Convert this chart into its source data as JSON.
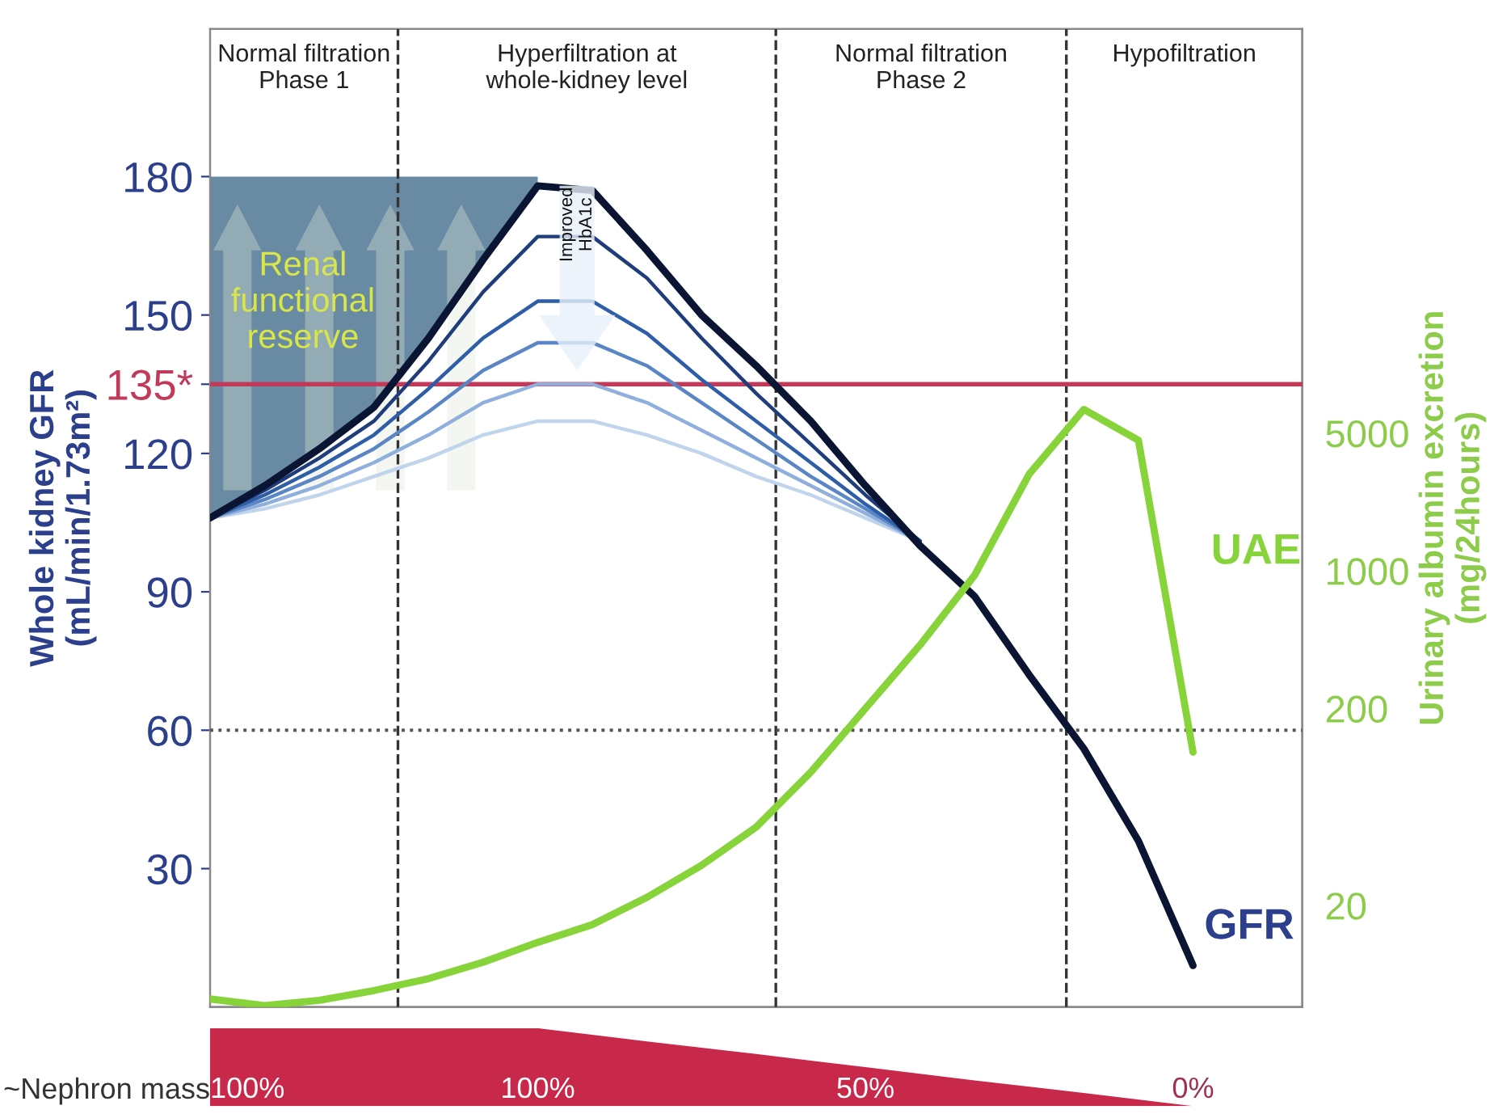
{
  "chart_data": [
    {
      "type": "line",
      "ylabel": "Whole kidney GFR\n(mL/min/1.73m²)",
      "y2label": "Urinary albumin excretion\n(mg/24hours)",
      "categories": [
        null,
        null,
        null,
        null,
        null,
        null,
        null,
        null,
        null,
        null,
        null,
        null,
        null,
        null,
        null,
        null,
        null,
        null,
        null,
        null,
        null
      ],
      "ylim": [
        0,
        212
      ],
      "yticks": [
        30,
        60,
        90,
        120,
        {
          "value": 135,
          "label": "135*"
        },
        150,
        180
      ],
      "y2lim": [
        6.1,
        564000
      ],
      "y2ticks": [
        20,
        200,
        1000,
        5000
      ],
      "log": "y2",
      "tick_labels": "y",
      "series": [
        {
          "type": "area",
          "color": "#4f7593",
          "values": [
            180,
            180,
            180,
            180,
            180,
            180,
            180,
            null,
            null,
            null,
            null,
            null,
            null,
            null,
            null,
            null,
            null,
            null,
            null,
            null,
            null
          ]
        },
        {
          "color": "#c0d4ec",
          "values": [
            106,
            108,
            111,
            115,
            119,
            124,
            127,
            127,
            124,
            120,
            115,
            111,
            106,
            101,
            null,
            null,
            null,
            null,
            null,
            null,
            null
          ]
        },
        {
          "color": "#8fb0dc",
          "values": [
            106,
            109,
            113,
            118,
            124,
            131,
            135,
            135,
            131,
            125,
            119,
            113,
            107,
            101,
            null,
            null,
            null,
            null,
            null,
            null,
            null
          ]
        },
        {
          "color": "#5b86c5",
          "values": [
            106,
            110,
            115,
            121,
            129,
            138,
            144,
            144,
            139,
            131,
            123,
            115,
            108,
            101,
            null,
            null,
            null,
            null,
            null,
            null,
            null
          ]
        },
        {
          "color": "#2e5ea8",
          "values": [
            106,
            111,
            117,
            124,
            134,
            145,
            153,
            153,
            146,
            136,
            127,
            118,
            109,
            101,
            null,
            null,
            null,
            null,
            null,
            null,
            null
          ]
        },
        {
          "color": "#1f3d7a",
          "values": [
            106,
            112,
            119,
            127,
            140,
            155,
            167,
            167,
            158,
            145,
            133,
            122,
            111,
            101,
            null,
            null,
            null,
            null,
            null,
            null,
            null
          ]
        },
        {
          "name": "GFR",
          "color": "#0a1433",
          "values": [
            106,
            113,
            121,
            130,
            145,
            162,
            178,
            177,
            164,
            150,
            139,
            127,
            113,
            100,
            89,
            72,
            56,
            36,
            9,
            null,
            null
          ]
        },
        {
          "name": "UAE",
          "color": "#86d43a",
          "axis": "y2",
          "values": [
            6.7,
            6.2,
            6.6,
            7.4,
            8.5,
            10.3,
            13,
            16,
            22,
            32,
            50,
            95,
            200,
            420,
            950,
            3100,
            6600,
            4600,
            120,
            null,
            null
          ]
        }
      ],
      "ref_lines": [
        {
          "axis": "y",
          "value": 135,
          "color": "#c23a5a",
          "line_style": "solid"
        },
        {
          "axis": "y",
          "value": 60,
          "color": "#555555",
          "line_style": "dotted"
        }
      ],
      "annotations": [
        "Renal\nfunctional\nreserve",
        "Improved\nHbA1c",
        "Normal filtration\nPhase 1",
        "Hyperfiltration at\nwhole-kidney level",
        "Normal filtration\nPhase 2",
        "Hypofiltration"
      ]
    },
    {
      "type": "area",
      "ylabel": "~Nephron mass",
      "tick_labels": false,
      "categories": [
        null,
        null,
        null,
        null,
        null,
        null,
        null,
        null,
        null,
        null,
        null
      ],
      "values": [
        100,
        100,
        100,
        100,
        83,
        67,
        50,
        33,
        17,
        0,
        0
      ],
      "color": "#c8284a",
      "value_labels": [
        "100%",
        null,
        null,
        "100%",
        null,
        null,
        "50%",
        null,
        null,
        "0%",
        null
      ]
    }
  ]
}
